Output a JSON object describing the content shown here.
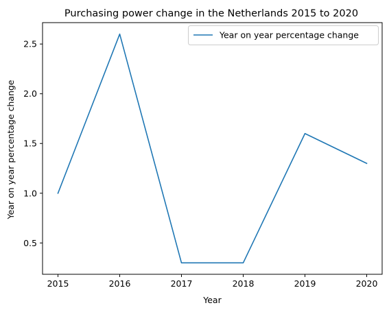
{
  "chart_data": {
    "type": "line",
    "title": "Purchasing power change in the Netherlands 2015 to 2020",
    "xlabel": "Year",
    "ylabel": "Year on year percentage change",
    "x": [
      2015,
      2016,
      2017,
      2018,
      2019,
      2020
    ],
    "series": [
      {
        "name": "Year on year percentage change",
        "values": [
          1.0,
          2.6,
          0.3,
          0.3,
          1.6,
          1.3
        ],
        "color": "#1f77b4"
      }
    ],
    "x_ticks": [
      "2015",
      "2016",
      "2017",
      "2018",
      "2019",
      "2020"
    ],
    "y_ticks": [
      "0.5",
      "1.0",
      "1.5",
      "2.0",
      "2.5"
    ],
    "xlim": [
      2014.75,
      2020.25
    ],
    "ylim": [
      0.185,
      2.715
    ],
    "grid": false,
    "legend": "top-right"
  }
}
